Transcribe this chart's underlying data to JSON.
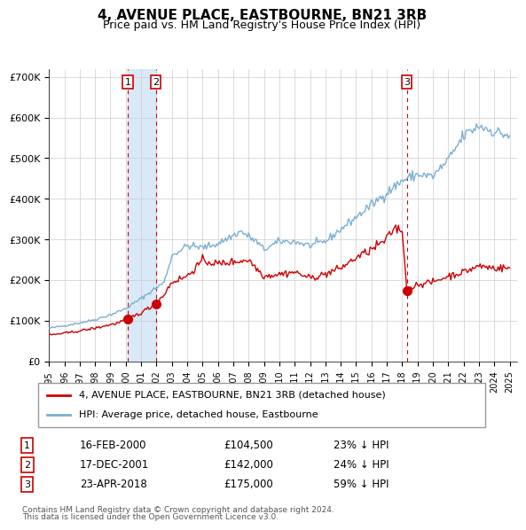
{
  "title": "4, AVENUE PLACE, EASTBOURNE, BN21 3RB",
  "subtitle": "Price paid vs. HM Land Registry's House Price Index (HPI)",
  "legend_line1": "4, AVENUE PLACE, EASTBOURNE, BN21 3RB (detached house)",
  "legend_line2": "HPI: Average price, detached house, Eastbourne",
  "footer1": "Contains HM Land Registry data © Crown copyright and database right 2024.",
  "footer2": "This data is licensed under the Open Government Licence v3.0.",
  "transactions": [
    {
      "num": 1,
      "date": "16-FEB-2000",
      "date_x": 2000.12,
      "price": 104500,
      "pct": "23%",
      "dir": "↓"
    },
    {
      "num": 2,
      "date": "17-DEC-2001",
      "date_x": 2001.96,
      "price": 142000,
      "pct": "24%",
      "dir": "↓"
    },
    {
      "num": 3,
      "date": "23-APR-2018",
      "date_x": 2018.31,
      "price": 175000,
      "pct": "59%",
      "dir": "↓"
    }
  ],
  "xlim": [
    1995.0,
    2025.5
  ],
  "ylim": [
    0,
    720000
  ],
  "yticks": [
    0,
    100000,
    200000,
    300000,
    400000,
    500000,
    600000,
    700000
  ],
  "ytick_labels": [
    "£0",
    "£100K",
    "£200K",
    "£300K",
    "£400K",
    "£500K",
    "£600K",
    "£700K"
  ],
  "hpi_color": "#7bafd4",
  "price_color": "#cc0000",
  "marker_color": "#cc0000",
  "vline_color": "#cc0000",
  "shade_color": "#d0e4f5",
  "grid_color": "#cccccc",
  "bg_color": "#ffffff"
}
